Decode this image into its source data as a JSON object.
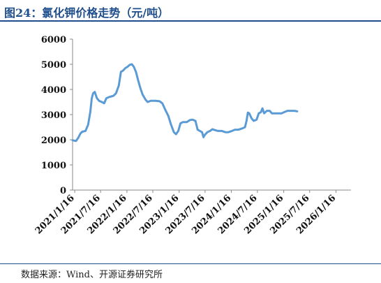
{
  "header": {
    "title": "图24：氯化钾价格走势（元/吨）"
  },
  "footer": {
    "source": "数据来源：Wind、开源证券研究所"
  },
  "chart_data": {
    "type": "line",
    "title": "氯化钾价格走势（元/吨）",
    "xlabel": "",
    "ylabel": "",
    "ylim": [
      0,
      6000
    ],
    "yticks": [
      0,
      1000,
      2000,
      3000,
      4000,
      5000,
      6000
    ],
    "xlim": [
      "2021-01-01",
      "2026-05-01"
    ],
    "xticks": [
      "2021/1/16",
      "2021/7/16",
      "2022/1/16",
      "2022/7/16",
      "2023/1/16",
      "2023/7/16",
      "2024/1/16",
      "2024/7/16",
      "2025/1/16",
      "2025/7/16",
      "2026/1/16"
    ],
    "grid": false,
    "legend": "none",
    "series": [
      {
        "color": "#5b9bd5",
        "points": [
          [
            "2021-01-01",
            1980
          ],
          [
            "2021-01-25",
            1950
          ],
          [
            "2021-02-10",
            2080
          ],
          [
            "2021-02-25",
            2250
          ],
          [
            "2021-03-10",
            2320
          ],
          [
            "2021-04-01",
            2350
          ],
          [
            "2021-04-20",
            2600
          ],
          [
            "2021-05-05",
            3100
          ],
          [
            "2021-05-15",
            3650
          ],
          [
            "2021-05-25",
            3850
          ],
          [
            "2021-06-05",
            3900
          ],
          [
            "2021-06-20",
            3650
          ],
          [
            "2021-07-05",
            3550
          ],
          [
            "2021-07-25",
            3500
          ],
          [
            "2021-08-10",
            3450
          ],
          [
            "2021-08-25",
            3650
          ],
          [
            "2021-09-15",
            3700
          ],
          [
            "2021-10-15",
            3750
          ],
          [
            "2021-11-01",
            3850
          ],
          [
            "2021-11-20",
            4150
          ],
          [
            "2021-12-05",
            4700
          ],
          [
            "2021-12-20",
            4750
          ],
          [
            "2022-01-05",
            4850
          ],
          [
            "2022-01-20",
            4900
          ],
          [
            "2022-02-05",
            4980
          ],
          [
            "2022-02-20",
            5000
          ],
          [
            "2022-03-05",
            4900
          ],
          [
            "2022-03-20",
            4700
          ],
          [
            "2022-04-05",
            4350
          ],
          [
            "2022-04-20",
            4050
          ],
          [
            "2022-05-05",
            3800
          ],
          [
            "2022-05-25",
            3600
          ],
          [
            "2022-06-10",
            3500
          ],
          [
            "2022-07-01",
            3550
          ],
          [
            "2022-08-01",
            3550
          ],
          [
            "2022-09-01",
            3530
          ],
          [
            "2022-09-20",
            3450
          ],
          [
            "2022-10-10",
            3200
          ],
          [
            "2022-11-01",
            2950
          ],
          [
            "2022-11-20",
            2600
          ],
          [
            "2022-12-10",
            2300
          ],
          [
            "2022-12-25",
            2220
          ],
          [
            "2023-01-10",
            2350
          ],
          [
            "2023-01-25",
            2650
          ],
          [
            "2023-02-10",
            2700
          ],
          [
            "2023-03-10",
            2700
          ],
          [
            "2023-04-01",
            2780
          ],
          [
            "2023-04-20",
            2800
          ],
          [
            "2023-05-10",
            2750
          ],
          [
            "2023-05-25",
            2400
          ],
          [
            "2023-06-10",
            2350
          ],
          [
            "2023-06-25",
            2300
          ],
          [
            "2023-07-05",
            2100
          ],
          [
            "2023-07-15",
            2200
          ],
          [
            "2023-08-01",
            2300
          ],
          [
            "2023-08-20",
            2350
          ],
          [
            "2023-09-05",
            2420
          ],
          [
            "2023-09-25",
            2380
          ],
          [
            "2023-10-15",
            2350
          ],
          [
            "2023-11-10",
            2350
          ],
          [
            "2023-12-05",
            2300
          ],
          [
            "2023-12-25",
            2300
          ],
          [
            "2024-01-20",
            2350
          ],
          [
            "2024-02-10",
            2400
          ],
          [
            "2024-03-05",
            2400
          ],
          [
            "2024-04-01",
            2450
          ],
          [
            "2024-04-20",
            2500
          ],
          [
            "2024-05-01",
            2750
          ],
          [
            "2024-05-10",
            3080
          ],
          [
            "2024-05-20",
            3050
          ],
          [
            "2024-06-05",
            2850
          ],
          [
            "2024-06-20",
            2750
          ],
          [
            "2024-07-10",
            2800
          ],
          [
            "2024-07-25",
            3050
          ],
          [
            "2024-08-10",
            3100
          ],
          [
            "2024-08-20",
            3250
          ],
          [
            "2024-09-01",
            3050
          ],
          [
            "2024-09-20",
            3150
          ],
          [
            "2024-10-10",
            3150
          ],
          [
            "2024-10-25",
            3050
          ],
          [
            "2024-11-15",
            3050
          ],
          [
            "2024-12-10",
            3050
          ],
          [
            "2025-01-01",
            3050
          ],
          [
            "2025-01-20",
            3100
          ],
          [
            "2025-02-10",
            3150
          ],
          [
            "2025-03-05",
            3150
          ],
          [
            "2025-04-01",
            3150
          ],
          [
            "2025-04-20",
            3130
          ]
        ]
      }
    ]
  }
}
